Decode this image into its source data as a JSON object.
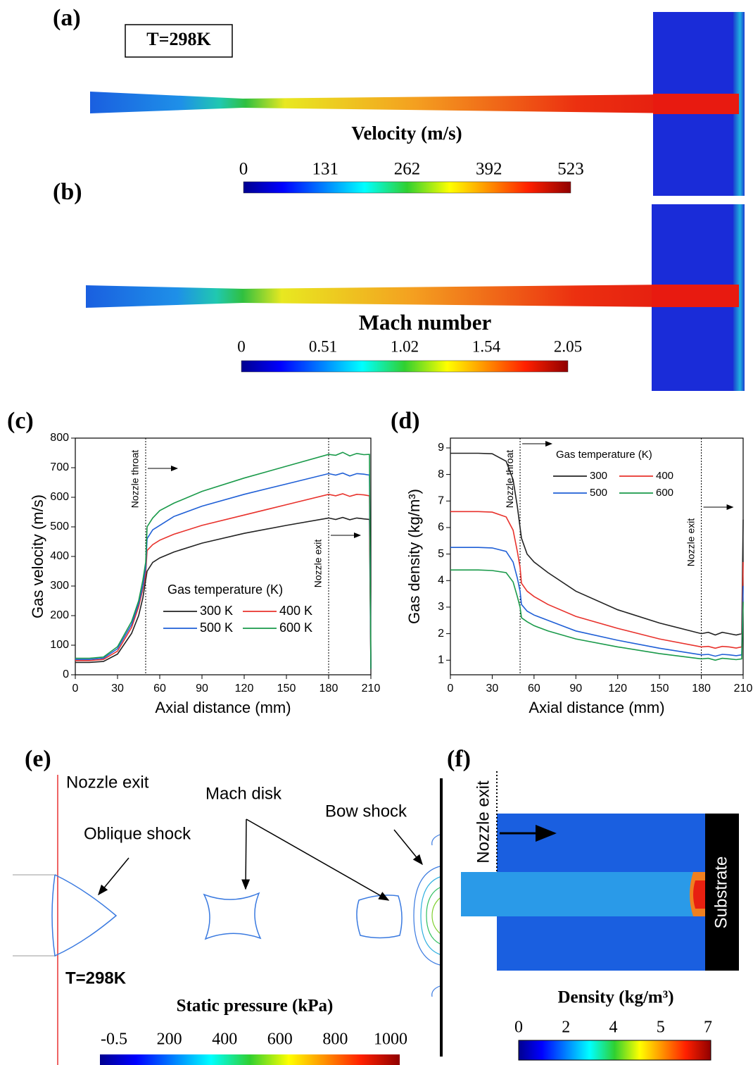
{
  "panel_a": {
    "label": "(a)",
    "condition": "T=298K",
    "colorbar": {
      "title": "Velocity (m/s)",
      "ticks": [
        0,
        131,
        262,
        392,
        523
      ]
    }
  },
  "panel_b": {
    "label": "(b)",
    "colorbar": {
      "title": "Mach number",
      "ticks": [
        0,
        0.51,
        1.02,
        1.54,
        2.05
      ]
    }
  },
  "chart_data": [
    {
      "type": "line",
      "label": "(c)",
      "xlabel": "Axial distance (mm)",
      "ylabel": "Gas velocity (m/s)",
      "xlim": [
        0,
        210
      ],
      "xticks": [
        0,
        30,
        60,
        90,
        120,
        150,
        180,
        210
      ],
      "ylim": [
        0,
        800
      ],
      "yticks": [
        0,
        100,
        200,
        300,
        400,
        500,
        600,
        700,
        800
      ],
      "legend_title": "Gas temperature (K)",
      "vlines": [
        {
          "x": 50,
          "label": "Nozzle throat"
        },
        {
          "x": 180,
          "label": "Nozzle exit"
        }
      ],
      "x": [
        0,
        10,
        20,
        30,
        40,
        45,
        48,
        50,
        51,
        55,
        60,
        70,
        90,
        120,
        150,
        180,
        185,
        190,
        195,
        200,
        205,
        209,
        210
      ],
      "series": [
        {
          "name": "300 K",
          "color": "#222222",
          "values": [
            42,
            42,
            45,
            70,
            140,
            200,
            260,
            320,
            350,
            380,
            395,
            415,
            445,
            478,
            505,
            530,
            525,
            532,
            524,
            530,
            527,
            525,
            20
          ]
        },
        {
          "name": "400 K",
          "color": "#e8322c",
          "values": [
            48,
            48,
            52,
            80,
            160,
            230,
            290,
            340,
            420,
            440,
            455,
            475,
            505,
            540,
            575,
            610,
            605,
            612,
            603,
            610,
            608,
            605,
            20
          ]
        },
        {
          "name": "500 K",
          "color": "#1f5fd6",
          "values": [
            52,
            52,
            56,
            88,
            170,
            240,
            300,
            360,
            460,
            490,
            505,
            535,
            570,
            610,
            645,
            680,
            675,
            682,
            672,
            680,
            678,
            675,
            20
          ]
        },
        {
          "name": "600 K",
          "color": "#1a9a4a",
          "values": [
            56,
            56,
            60,
            95,
            180,
            250,
            320,
            380,
            500,
            530,
            555,
            580,
            620,
            665,
            705,
            745,
            742,
            752,
            740,
            748,
            744,
            745,
            20
          ]
        }
      ]
    },
    {
      "type": "line",
      "label": "(d)",
      "xlabel": "Axial distance (mm)",
      "ylabel": "Gas density (kg/m³)",
      "xlim": [
        0,
        210
      ],
      "xticks": [
        0,
        30,
        60,
        90,
        120,
        150,
        180,
        210
      ],
      "ylim": [
        0.45,
        9.37
      ],
      "yticks": [
        1,
        2,
        3,
        4,
        5,
        6,
        7,
        8,
        9
      ],
      "legend_title": "Gas temperature (K)",
      "vlines": [
        {
          "x": 50,
          "label": "Nozzle throat"
        },
        {
          "x": 180,
          "label": "Nozzle exit"
        }
      ],
      "x": [
        0,
        10,
        20,
        30,
        40,
        45,
        48,
        50,
        51,
        55,
        60,
        70,
        90,
        120,
        150,
        180,
        185,
        190,
        195,
        200,
        205,
        209,
        210
      ],
      "series": [
        {
          "name": "300",
          "color": "#222222",
          "values": [
            8.8,
            8.8,
            8.8,
            8.78,
            8.5,
            7.8,
            6.8,
            6.0,
            5.6,
            5.0,
            4.7,
            4.3,
            3.6,
            2.9,
            2.4,
            2.0,
            2.05,
            1.95,
            2.05,
            2.0,
            1.95,
            2.0,
            6.3
          ]
        },
        {
          "name": "400",
          "color": "#e8322c",
          "values": [
            6.6,
            6.6,
            6.6,
            6.58,
            6.4,
            5.9,
            5.1,
            4.5,
            3.9,
            3.6,
            3.4,
            3.1,
            2.65,
            2.2,
            1.8,
            1.5,
            1.52,
            1.45,
            1.52,
            1.5,
            1.46,
            1.5,
            4.7
          ]
        },
        {
          "name": "500",
          "color": "#1f5fd6",
          "values": [
            5.25,
            5.25,
            5.25,
            5.23,
            5.1,
            4.7,
            4.1,
            3.6,
            3.1,
            2.85,
            2.7,
            2.5,
            2.1,
            1.75,
            1.45,
            1.2,
            1.22,
            1.15,
            1.22,
            1.2,
            1.17,
            1.2,
            3.8
          ]
        },
        {
          "name": "600",
          "color": "#1a9a4a",
          "values": [
            4.4,
            4.4,
            4.4,
            4.38,
            4.3,
            3.95,
            3.4,
            3.0,
            2.6,
            2.45,
            2.3,
            2.1,
            1.8,
            1.5,
            1.25,
            1.05,
            1.07,
            1.0,
            1.07,
            1.05,
            1.02,
            1.05,
            3.2
          ]
        }
      ]
    }
  ],
  "panel_e": {
    "label": "(e)",
    "annotations": [
      "Nozzle exit",
      "Mach disk",
      "Oblique shock",
      "Bow shock"
    ],
    "condition": "T=298K",
    "colorbar": {
      "title": "Static pressure (kPa)",
      "ticks": [
        -0.5,
        200,
        400,
        600,
        800,
        1000
      ]
    }
  },
  "panel_f": {
    "label": "(f)",
    "annotations": [
      "Nozzle exit",
      "Substrate"
    ],
    "colorbar": {
      "title": "Density (kg/m³)",
      "ticks": [
        0,
        2,
        4,
        5,
        7
      ]
    }
  }
}
